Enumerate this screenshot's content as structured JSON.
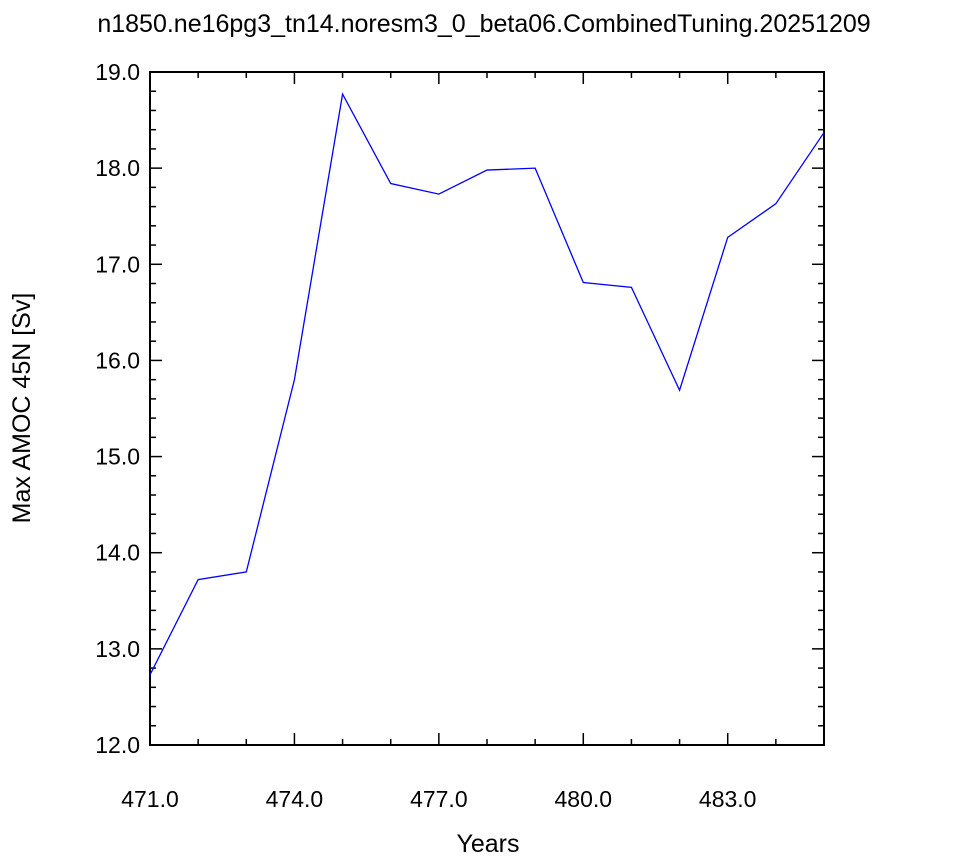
{
  "chart_data": {
    "type": "line",
    "title": "n1850.ne16pg3_tn14.noresm3_0_beta06.CombinedTuning.20251209",
    "x_label": "Years",
    "y_label": "Max AMOC 45N [Sv]",
    "x": [
      471,
      472,
      473,
      474,
      475,
      476,
      477,
      478,
      479,
      480,
      481,
      482,
      483,
      484,
      485
    ],
    "series": [
      {
        "color": "#0000ff",
        "values": [
          12.73,
          13.72,
          13.8,
          15.8,
          18.77,
          17.84,
          17.73,
          17.98,
          18.0,
          16.81,
          16.76,
          15.69,
          17.28,
          17.63,
          18.37
        ]
      }
    ],
    "xlim": [
      471,
      485
    ],
    "ylim": [
      12,
      19
    ],
    "xticks": [
      {
        "value": 471,
        "label": "471.0"
      },
      {
        "value": 474,
        "label": "474.0"
      },
      {
        "value": 477,
        "label": "477.0"
      },
      {
        "value": 480,
        "label": "480.0"
      },
      {
        "value": 483,
        "label": "483.0"
      }
    ],
    "yticks": [
      {
        "value": 12,
        "label": "12.0"
      },
      {
        "value": 13,
        "label": "13.0"
      },
      {
        "value": 14,
        "label": "14.0"
      },
      {
        "value": 15,
        "label": "15.0"
      },
      {
        "value": 16,
        "label": "16.0"
      },
      {
        "value": 17,
        "label": "17.0"
      },
      {
        "value": 18,
        "label": "18.0"
      },
      {
        "value": 19,
        "label": "19.0"
      }
    ],
    "xminorticks": [
      472,
      473,
      475,
      476,
      478,
      479,
      481,
      482,
      484
    ],
    "yminorticks": [
      12.2,
      12.4,
      12.6,
      12.8,
      13.2,
      13.4,
      13.6,
      13.8,
      14.2,
      14.4,
      14.6,
      14.8,
      15.2,
      15.4,
      15.6,
      15.8,
      16.2,
      16.4,
      16.6,
      16.8,
      17.2,
      17.4,
      17.6,
      17.8,
      18.2,
      18.4,
      18.6,
      18.8
    ]
  }
}
